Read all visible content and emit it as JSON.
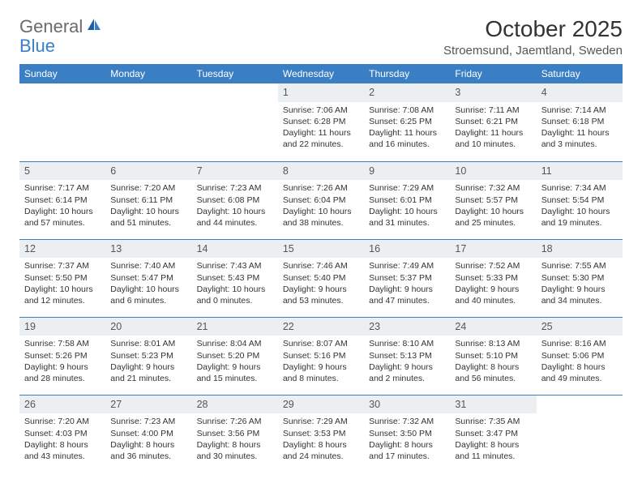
{
  "brand": {
    "word1": "General",
    "word2": "Blue"
  },
  "title": "October 2025",
  "location": "Stroemsund, Jaemtland, Sweden",
  "colors": {
    "header_bg": "#3a7fc4",
    "header_text": "#ffffff",
    "daynum_bg": "#eceff1",
    "cell_border": "#3a7fc4",
    "page_bg": "#ffffff",
    "text": "#333333",
    "logo_gray": "#6b6b6b",
    "logo_blue": "#3a7fc4"
  },
  "day_headers": [
    "Sunday",
    "Monday",
    "Tuesday",
    "Wednesday",
    "Thursday",
    "Friday",
    "Saturday"
  ],
  "weeks": [
    [
      null,
      null,
      null,
      {
        "n": "1",
        "sr": "7:06 AM",
        "ss": "6:28 PM",
        "dl": "11 hours and 22 minutes."
      },
      {
        "n": "2",
        "sr": "7:08 AM",
        "ss": "6:25 PM",
        "dl": "11 hours and 16 minutes."
      },
      {
        "n": "3",
        "sr": "7:11 AM",
        "ss": "6:21 PM",
        "dl": "11 hours and 10 minutes."
      },
      {
        "n": "4",
        "sr": "7:14 AM",
        "ss": "6:18 PM",
        "dl": "11 hours and 3 minutes."
      }
    ],
    [
      {
        "n": "5",
        "sr": "7:17 AM",
        "ss": "6:14 PM",
        "dl": "10 hours and 57 minutes."
      },
      {
        "n": "6",
        "sr": "7:20 AM",
        "ss": "6:11 PM",
        "dl": "10 hours and 51 minutes."
      },
      {
        "n": "7",
        "sr": "7:23 AM",
        "ss": "6:08 PM",
        "dl": "10 hours and 44 minutes."
      },
      {
        "n": "8",
        "sr": "7:26 AM",
        "ss": "6:04 PM",
        "dl": "10 hours and 38 minutes."
      },
      {
        "n": "9",
        "sr": "7:29 AM",
        "ss": "6:01 PM",
        "dl": "10 hours and 31 minutes."
      },
      {
        "n": "10",
        "sr": "7:32 AM",
        "ss": "5:57 PM",
        "dl": "10 hours and 25 minutes."
      },
      {
        "n": "11",
        "sr": "7:34 AM",
        "ss": "5:54 PM",
        "dl": "10 hours and 19 minutes."
      }
    ],
    [
      {
        "n": "12",
        "sr": "7:37 AM",
        "ss": "5:50 PM",
        "dl": "10 hours and 12 minutes."
      },
      {
        "n": "13",
        "sr": "7:40 AM",
        "ss": "5:47 PM",
        "dl": "10 hours and 6 minutes."
      },
      {
        "n": "14",
        "sr": "7:43 AM",
        "ss": "5:43 PM",
        "dl": "10 hours and 0 minutes."
      },
      {
        "n": "15",
        "sr": "7:46 AM",
        "ss": "5:40 PM",
        "dl": "9 hours and 53 minutes."
      },
      {
        "n": "16",
        "sr": "7:49 AM",
        "ss": "5:37 PM",
        "dl": "9 hours and 47 minutes."
      },
      {
        "n": "17",
        "sr": "7:52 AM",
        "ss": "5:33 PM",
        "dl": "9 hours and 40 minutes."
      },
      {
        "n": "18",
        "sr": "7:55 AM",
        "ss": "5:30 PM",
        "dl": "9 hours and 34 minutes."
      }
    ],
    [
      {
        "n": "19",
        "sr": "7:58 AM",
        "ss": "5:26 PM",
        "dl": "9 hours and 28 minutes."
      },
      {
        "n": "20",
        "sr": "8:01 AM",
        "ss": "5:23 PM",
        "dl": "9 hours and 21 minutes."
      },
      {
        "n": "21",
        "sr": "8:04 AM",
        "ss": "5:20 PM",
        "dl": "9 hours and 15 minutes."
      },
      {
        "n": "22",
        "sr": "8:07 AM",
        "ss": "5:16 PM",
        "dl": "9 hours and 8 minutes."
      },
      {
        "n": "23",
        "sr": "8:10 AM",
        "ss": "5:13 PM",
        "dl": "9 hours and 2 minutes."
      },
      {
        "n": "24",
        "sr": "8:13 AM",
        "ss": "5:10 PM",
        "dl": "8 hours and 56 minutes."
      },
      {
        "n": "25",
        "sr": "8:16 AM",
        "ss": "5:06 PM",
        "dl": "8 hours and 49 minutes."
      }
    ],
    [
      {
        "n": "26",
        "sr": "7:20 AM",
        "ss": "4:03 PM",
        "dl": "8 hours and 43 minutes."
      },
      {
        "n": "27",
        "sr": "7:23 AM",
        "ss": "4:00 PM",
        "dl": "8 hours and 36 minutes."
      },
      {
        "n": "28",
        "sr": "7:26 AM",
        "ss": "3:56 PM",
        "dl": "8 hours and 30 minutes."
      },
      {
        "n": "29",
        "sr": "7:29 AM",
        "ss": "3:53 PM",
        "dl": "8 hours and 24 minutes."
      },
      {
        "n": "30",
        "sr": "7:32 AM",
        "ss": "3:50 PM",
        "dl": "8 hours and 17 minutes."
      },
      {
        "n": "31",
        "sr": "7:35 AM",
        "ss": "3:47 PM",
        "dl": "8 hours and 11 minutes."
      },
      null
    ]
  ],
  "labels": {
    "sunrise": "Sunrise: ",
    "sunset": "Sunset: ",
    "daylight": "Daylight: "
  }
}
